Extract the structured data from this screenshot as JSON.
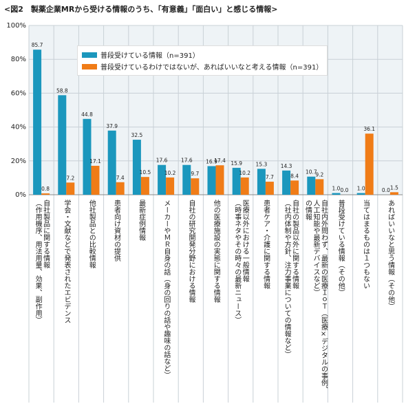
{
  "chart_data": {
    "type": "bar",
    "title": "<図2　製薬企業MRから受ける情報のうち、「有意義」「面白い」と感じる情報>",
    "categories": [
      "自社製品に関する情報\n（作用機序、用法用量、効果、副作用）",
      "学会・文献などで発表されたエビデンス",
      "他社製品との比較情報",
      "患者向け資材の提供",
      "最新症例情報",
      "メーカーやＭＲ自身の話（身の回りの話や趣味の話など）",
      "自社の研究開発分野における情報",
      "他の医療施設の実態に関する情報",
      "医療以外における一般情報\n（時事ネタやその時々の最新ニュース）",
      "患者ケア・介護に関する情報",
      "自社の製品以外に関する情報\n（社内体制や方針、注力事業についての情報など）",
      "自社内外問わず、最新の医療ＩｏＴ（医療×デジタルの事例、\n人工知能や最新デバイスなど）\nの情報",
      "普段受けている情報（その他）",
      "当てはまるものは１つもない",
      "あればいいなと思う情報（その他）"
    ],
    "series": [
      {
        "name": "普段受けている情報（n=391）",
        "color": "#1b97bd",
        "values": [
          85.7,
          58.8,
          44.8,
          37.9,
          32.5,
          17.6,
          17.6,
          16.9,
          15.9,
          15.3,
          14.3,
          10.7,
          1,
          1,
          0
        ],
        "value_labels": [
          "85.7",
          "58.8",
          "44.8",
          "37.9",
          "32.5",
          "17.6",
          "17.6",
          "16.9",
          "15.9",
          "15.3",
          "14.3",
          "10.7",
          "1.0",
          "1.0",
          "0.0"
        ]
      },
      {
        "name": "普段受けているわけではないが、あればいいなと考える情報（n=391）",
        "color": "#f07c17",
        "values": [
          0.8,
          7.2,
          17.1,
          7.4,
          10.5,
          10.2,
          9.7,
          17.4,
          10.2,
          7.7,
          8.4,
          9.2,
          0,
          36.1,
          1.5
        ],
        "value_labels": [
          "0.8",
          "7.2",
          "17.1",
          "7.4",
          "10.5",
          "10.2",
          "9.7",
          "17.4",
          "10.2",
          "7.7",
          "8.4",
          "9.2",
          "0.0",
          "36.1",
          "1.5"
        ]
      }
    ],
    "ylim": [
      0,
      100
    ],
    "yticks": [
      {
        "value": 0,
        "label": "0%"
      },
      {
        "value": 20,
        "label": "20%"
      },
      {
        "value": 40,
        "label": "40%"
      },
      {
        "value": 60,
        "label": "60%"
      },
      {
        "value": 80,
        "label": "80%"
      },
      {
        "value": 100,
        "label": "100%"
      }
    ],
    "grid": true
  }
}
